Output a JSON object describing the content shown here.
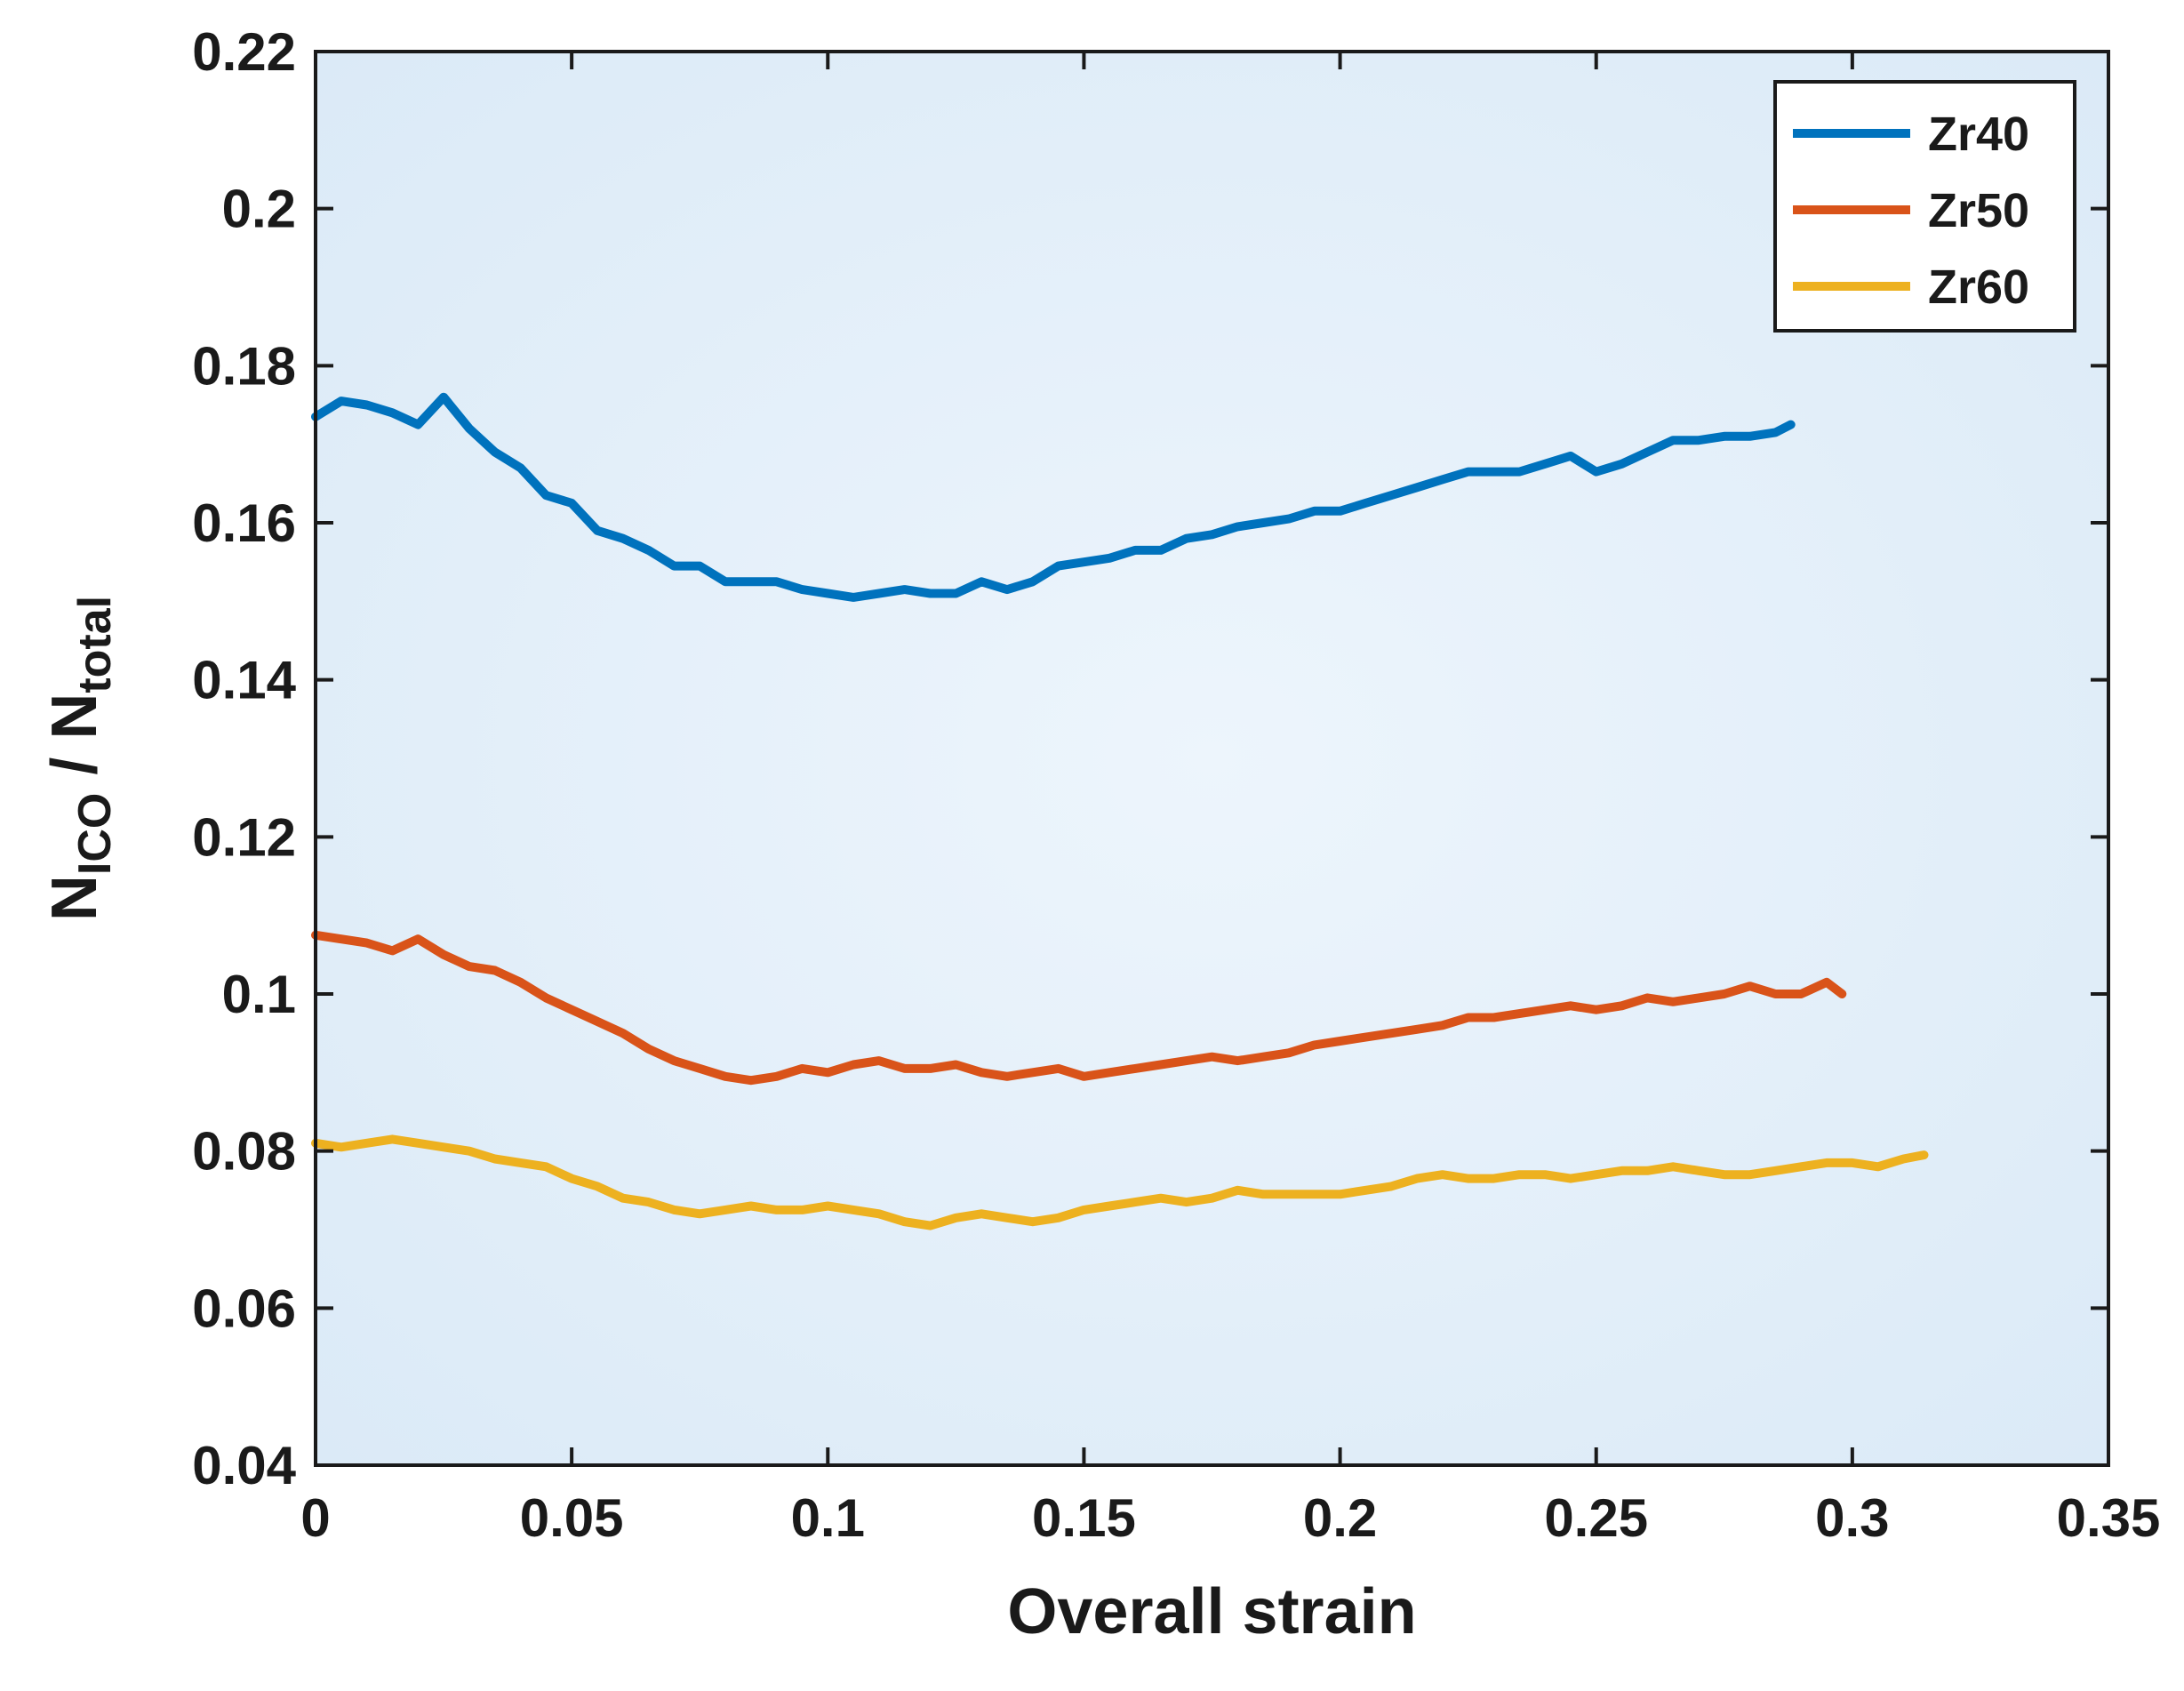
{
  "chart_data": {
    "type": "line",
    "title": "",
    "xlabel": "Overall strain",
    "ylabel": {
      "main": "N",
      "sub1": "ICO",
      "sep": " / N",
      "sub2": "total"
    },
    "xlim": [
      0,
      0.35
    ],
    "ylim": [
      0.04,
      0.22
    ],
    "xticks": [
      0,
      0.05,
      0.1,
      0.15,
      0.2,
      0.25,
      0.3,
      0.35
    ],
    "yticks": [
      0.04,
      0.06,
      0.08,
      0.1,
      0.12,
      0.14,
      0.16,
      0.18,
      0.2,
      0.22
    ],
    "xtick_labels": [
      "0",
      "0.05",
      "0.1",
      "0.15",
      "0.2",
      "0.25",
      "0.3",
      "0.35"
    ],
    "ytick_labels": [
      "0.04",
      "0.06",
      "0.08",
      "0.1",
      "0.12",
      "0.14",
      "0.16",
      "0.18",
      "0.2",
      "0.22"
    ],
    "grid": false,
    "legend_position": "top-right",
    "series": [
      {
        "name": "Zr40",
        "color": "#0072BD",
        "x": [
          0,
          0.005,
          0.01,
          0.015,
          0.02,
          0.025,
          0.03,
          0.035,
          0.04,
          0.045,
          0.05,
          0.055,
          0.06,
          0.065,
          0.07,
          0.075,
          0.08,
          0.085,
          0.09,
          0.095,
          0.1,
          0.105,
          0.11,
          0.115,
          0.12,
          0.125,
          0.13,
          0.135,
          0.14,
          0.145,
          0.15,
          0.155,
          0.16,
          0.165,
          0.17,
          0.175,
          0.18,
          0.185,
          0.19,
          0.195,
          0.2,
          0.205,
          0.21,
          0.215,
          0.22,
          0.225,
          0.23,
          0.235,
          0.24,
          0.245,
          0.25,
          0.255,
          0.26,
          0.265,
          0.27,
          0.275,
          0.28,
          0.285,
          0.288
        ],
        "y": [
          0.1735,
          0.1755,
          0.175,
          0.174,
          0.1725,
          0.176,
          0.172,
          0.169,
          0.167,
          0.1635,
          0.1625,
          0.159,
          0.158,
          0.1565,
          0.1545,
          0.1545,
          0.1525,
          0.1525,
          0.1525,
          0.1515,
          0.151,
          0.1505,
          0.151,
          0.1515,
          0.151,
          0.151,
          0.1525,
          0.1515,
          0.1525,
          0.1545,
          0.155,
          0.1555,
          0.1565,
          0.1565,
          0.158,
          0.1585,
          0.1595,
          0.16,
          0.1605,
          0.1615,
          0.1615,
          0.1625,
          0.1635,
          0.1645,
          0.1655,
          0.1665,
          0.1665,
          0.1665,
          0.1675,
          0.1685,
          0.1665,
          0.1675,
          0.169,
          0.1705,
          0.1705,
          0.171,
          0.171,
          0.1715,
          0.1725
        ]
      },
      {
        "name": "Zr50",
        "color": "#D95319",
        "x": [
          0,
          0.005,
          0.01,
          0.015,
          0.02,
          0.025,
          0.03,
          0.035,
          0.04,
          0.045,
          0.05,
          0.055,
          0.06,
          0.065,
          0.07,
          0.075,
          0.08,
          0.085,
          0.09,
          0.095,
          0.1,
          0.105,
          0.11,
          0.115,
          0.12,
          0.125,
          0.13,
          0.135,
          0.14,
          0.145,
          0.15,
          0.155,
          0.16,
          0.165,
          0.17,
          0.175,
          0.18,
          0.185,
          0.19,
          0.195,
          0.2,
          0.205,
          0.21,
          0.215,
          0.22,
          0.225,
          0.23,
          0.235,
          0.24,
          0.245,
          0.25,
          0.255,
          0.26,
          0.265,
          0.27,
          0.275,
          0.28,
          0.285,
          0.29,
          0.295,
          0.298
        ],
        "y": [
          0.1075,
          0.107,
          0.1065,
          0.1055,
          0.107,
          0.105,
          0.1035,
          0.103,
          0.1015,
          0.0995,
          0.098,
          0.0965,
          0.095,
          0.093,
          0.0915,
          0.0905,
          0.0895,
          0.089,
          0.0895,
          0.0905,
          0.09,
          0.091,
          0.0915,
          0.0905,
          0.0905,
          0.091,
          0.09,
          0.0895,
          0.09,
          0.0905,
          0.0895,
          0.09,
          0.0905,
          0.091,
          0.0915,
          0.092,
          0.0915,
          0.092,
          0.0925,
          0.0935,
          0.094,
          0.0945,
          0.095,
          0.0955,
          0.096,
          0.097,
          0.097,
          0.0975,
          0.098,
          0.0985,
          0.098,
          0.0985,
          0.0995,
          0.099,
          0.0995,
          0.1,
          0.101,
          0.1,
          0.1,
          0.1015,
          0.1
        ]
      },
      {
        "name": "Zr60",
        "color": "#EDB120",
        "x": [
          0,
          0.005,
          0.01,
          0.015,
          0.02,
          0.025,
          0.03,
          0.035,
          0.04,
          0.045,
          0.05,
          0.055,
          0.06,
          0.065,
          0.07,
          0.075,
          0.08,
          0.085,
          0.09,
          0.095,
          0.1,
          0.105,
          0.11,
          0.115,
          0.12,
          0.125,
          0.13,
          0.135,
          0.14,
          0.145,
          0.15,
          0.155,
          0.16,
          0.165,
          0.17,
          0.175,
          0.18,
          0.185,
          0.19,
          0.195,
          0.2,
          0.205,
          0.21,
          0.215,
          0.22,
          0.225,
          0.23,
          0.235,
          0.24,
          0.245,
          0.25,
          0.255,
          0.26,
          0.265,
          0.27,
          0.275,
          0.28,
          0.285,
          0.29,
          0.295,
          0.3,
          0.305,
          0.31,
          0.314
        ],
        "y": [
          0.081,
          0.0805,
          0.081,
          0.0815,
          0.081,
          0.0805,
          0.08,
          0.079,
          0.0785,
          0.078,
          0.0765,
          0.0755,
          0.074,
          0.0735,
          0.0725,
          0.072,
          0.0725,
          0.073,
          0.0725,
          0.0725,
          0.073,
          0.0725,
          0.072,
          0.071,
          0.0705,
          0.0715,
          0.072,
          0.0715,
          0.071,
          0.0715,
          0.0725,
          0.073,
          0.0735,
          0.074,
          0.0735,
          0.074,
          0.075,
          0.0745,
          0.0745,
          0.0745,
          0.0745,
          0.075,
          0.0755,
          0.0765,
          0.077,
          0.0765,
          0.0765,
          0.077,
          0.077,
          0.0765,
          0.077,
          0.0775,
          0.0775,
          0.078,
          0.0775,
          0.077,
          0.077,
          0.0775,
          0.078,
          0.0785,
          0.0785,
          0.078,
          0.079,
          0.0795
        ]
      }
    ]
  }
}
